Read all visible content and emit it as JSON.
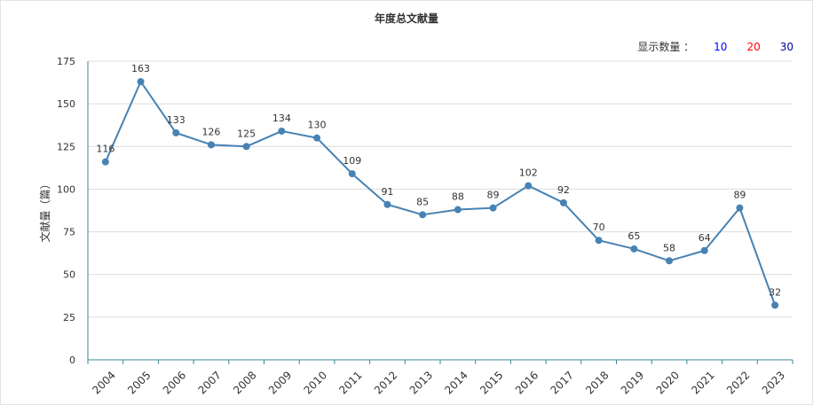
{
  "chart_title": "年度总文献量",
  "display_count": {
    "label": "显示数量 ：",
    "options": [
      "10",
      "20",
      "30"
    ]
  },
  "chart_data": {
    "type": "line",
    "title": "年度总文献量",
    "ylabel": "文献量（篇）",
    "xlabel": "",
    "ylim": [
      0,
      175
    ],
    "yticks": [
      0,
      25,
      50,
      75,
      100,
      125,
      150,
      175
    ],
    "categories": [
      "2004",
      "2005",
      "2006",
      "2007",
      "2008",
      "2009",
      "2010",
      "2011",
      "2012",
      "2013",
      "2014",
      "2015",
      "2016",
      "2017",
      "2018",
      "2019",
      "2020",
      "2021",
      "2022",
      "2023"
    ],
    "values": [
      116,
      163,
      133,
      126,
      125,
      134,
      130,
      109,
      91,
      85,
      88,
      89,
      102,
      92,
      70,
      65,
      58,
      64,
      89,
      32
    ],
    "grid": true,
    "line_color": "#4682b4"
  }
}
